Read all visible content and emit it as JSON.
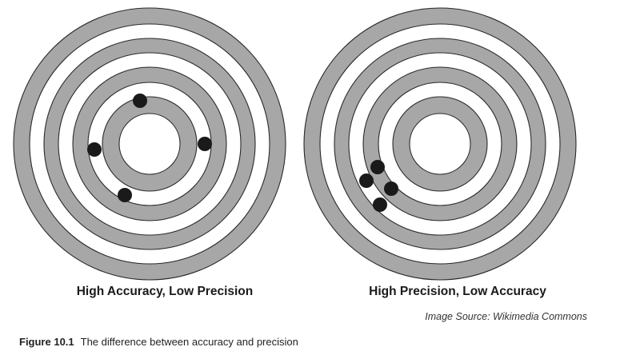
{
  "targets": [
    {
      "label": "High Accuracy, Low Precision",
      "ring_color": "#a7a7a7",
      "dot_color": "#1a1a1a"
    },
    {
      "label": "High Precision, Low Accuracy",
      "ring_color": "#a7a7a7",
      "dot_color": "#1a1a1a"
    }
  ],
  "image_source": "Image Source: Wikimedia Commons",
  "figure_caption": {
    "number": "Figure 10.1",
    "text": "The difference between accuracy and precision"
  }
}
